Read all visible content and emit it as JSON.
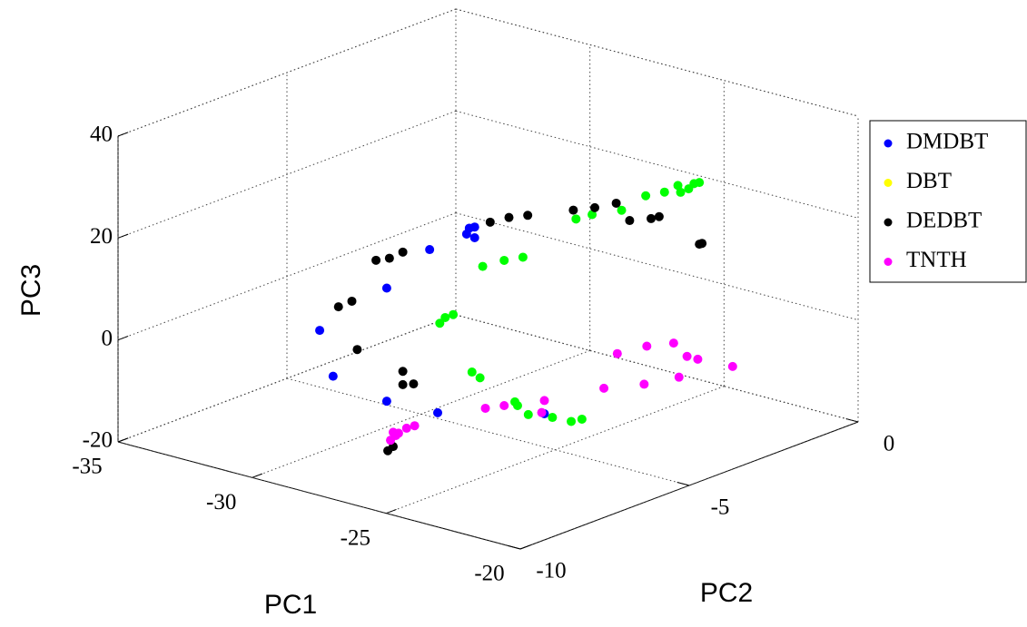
{
  "chart_data": {
    "type": "scatter3d",
    "xlabel": "PC1",
    "ylabel": "PC2",
    "zlabel": "PC3",
    "xlim": [
      -35,
      -20
    ],
    "xticks": [
      -35,
      -30,
      -25,
      -20
    ],
    "ylim": [
      -10,
      0
    ],
    "yticks": [
      -10,
      -5,
      0
    ],
    "zlim": [
      -20,
      40
    ],
    "zticks": [
      -20,
      0,
      20,
      40
    ],
    "grid": true,
    "legend": "upper right outside",
    "series": [
      {
        "name": "DMDBT",
        "color": "#0000ff",
        "x": [
          -30.0,
          -29.5,
          -27.5,
          -27.5,
          -25.9,
          -25.6,
          -28.3,
          -28.0,
          -28.2,
          -28.0,
          -25.4
        ],
        "y": [
          -8,
          -8,
          -8,
          -8,
          -8,
          -8,
          -5,
          -5,
          -5,
          -5,
          -5
        ],
        "z": [
          3.9,
          -4.4,
          15.7,
          -6.5,
          25.5,
          -6.1,
          17.7,
          17.4,
          19.0,
          19.5,
          -13.5
        ]
      },
      {
        "name": "DBT",
        "color": "#00ff00",
        "legend_color": "#ffff00",
        "x": [
          -28.0,
          -27.4,
          -26.3,
          -25.4,
          -24.7,
          -24.2,
          -24.1,
          -23.8,
          -23.6,
          -23.4,
          -27.7,
          -26.9,
          -26.2,
          -29.3,
          -29.1,
          -28.8,
          -28.1,
          -27.8,
          -26.5,
          -26.4,
          -26.0,
          -25.1,
          -24.4,
          -24.0
        ],
        "y": [
          -2,
          -2,
          -2,
          -2,
          -2,
          -2,
          -2,
          -2,
          -2,
          -2,
          -5,
          -5,
          -5,
          -5,
          -5,
          -5,
          -5,
          -5,
          -5,
          -5,
          -5,
          -5,
          -5,
          -5
        ],
        "z": [
          13.6,
          15.3,
          17.7,
          21.8,
          23.5,
          25.5,
          24.3,
          25.4,
          26.7,
          27.2,
          12.2,
          14.5,
          16.1,
          -1.2,
          0.2,
          1.2,
          -9.1,
          -9.8,
          -12.7,
          -13.3,
          -14.5,
          -13.8,
          -13.6,
          -12.6
        ]
      },
      {
        "name": "DEDBT",
        "color": "#000000",
        "x": [
          -27.9,
          -27.4,
          -26.9,
          -29.3,
          -28.8,
          -28.6,
          -26.9,
          -26.9,
          -26.5,
          -26.2,
          -26.0,
          -31.2,
          -30.5,
          -29.8,
          -28.1,
          -27.3,
          -26.5,
          -26.0,
          -25.2,
          -24.9,
          -23.4,
          -23.3
        ],
        "y": [
          -8,
          -8,
          -8,
          -8,
          -8,
          -8,
          -8,
          -8,
          -8,
          -9,
          -9,
          -2,
          -2,
          -2,
          -2,
          -2,
          -2,
          -2,
          -2,
          -2,
          -2,
          -2
        ],
        "z": [
          20.6,
          21.7,
          23.6,
          9.5,
          11.3,
          2.1,
          0.2,
          -2.4,
          -1.7,
          -11.9,
          -10.8,
          8.5,
          10.4,
          11.8,
          15.2,
          16.8,
          18.8,
          16.1,
          17.6,
          18.4,
          15.1,
          15.4
        ]
      },
      {
        "name": "TNTH",
        "color": "#ff00ff",
        "x": [
          -26.0,
          -25.9,
          -25.8,
          -25.5,
          -25.2,
          -26.1,
          -27.6,
          -26.9,
          -25.4,
          -25.5,
          -25.7,
          -25.2,
          -24.2,
          -24.1,
          -23.1,
          -22.9,
          -22.6,
          -22.2,
          -20.9
        ],
        "y": [
          -9,
          -9,
          -9,
          -9,
          -9,
          -9,
          -5,
          -5,
          -5,
          -5,
          -3,
          -3,
          -3,
          -3,
          -3,
          -3,
          -3,
          -3,
          -3
        ],
        "z": [
          -8.0,
          -8.5,
          -7.9,
          -6.5,
          -5.6,
          -9.7,
          -15.5,
          -14.0,
          -10.9,
          -13.4,
          -13.9,
          -6.4,
          -11.0,
          -3.4,
          -1.4,
          -7.8,
          -3.3,
          -3.3,
          -2.9
        ]
      }
    ]
  }
}
